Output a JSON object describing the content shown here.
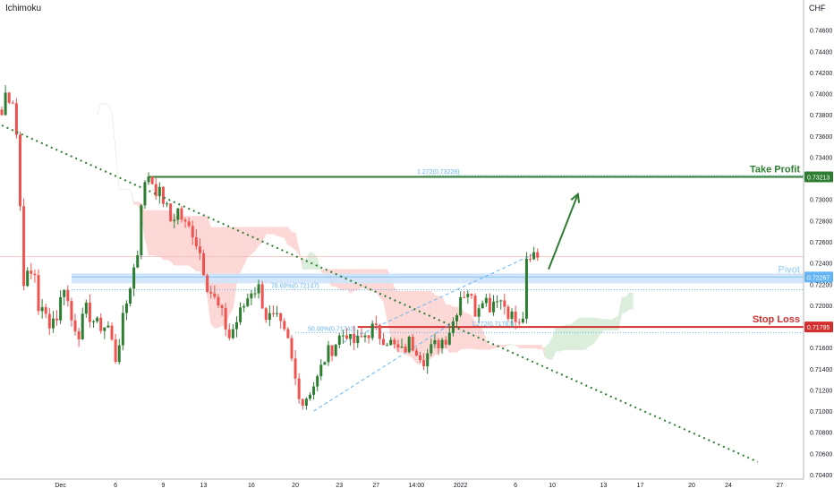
{
  "indicator": "Ichimoku",
  "currency": "CHF",
  "colors": {
    "up": "#26a69a",
    "upBody": "#2e7d32",
    "down": "#ef5350",
    "cloudRed": "#fcd3d1",
    "cloudGreen": "#d6ecd7",
    "takeProfit": "#2e7d32",
    "pivot": "#90caf9",
    "stopLoss": "#d32f2f",
    "fib": "#64b5f6",
    "trend": "#2e7d32",
    "axis": "#b2b5be",
    "text": "#131722"
  },
  "chart_data": {
    "type": "candlestick",
    "symbol_indicator": "Ichimoku",
    "ylim": [
      0.704,
      0.748
    ],
    "y_ticks": [
      "0.74600",
      "0.74400",
      "0.74200",
      "0.74000",
      "0.73800",
      "0.73600",
      "0.73400",
      "0.73200",
      "0.73000",
      "0.72800",
      "0.72600",
      "0.72400",
      "0.72200",
      "0.72000",
      "0.71800",
      "0.71600",
      "0.71400",
      "0.71200",
      "0.71000",
      "0.70800",
      "0.70600",
      "0.70400"
    ],
    "x_ticks": [
      {
        "label": "Dec",
        "bar": 16
      },
      {
        "label": "6",
        "bar": 31
      },
      {
        "label": "9",
        "bar": 44
      },
      {
        "label": "13",
        "bar": 55
      },
      {
        "label": "16",
        "bar": 68
      },
      {
        "label": "20",
        "bar": 80
      },
      {
        "label": "23",
        "bar": 92
      },
      {
        "label": "27",
        "bar": 102
      },
      {
        "label": "14:00",
        "bar": 113
      },
      {
        "label": "2022",
        "bar": 125
      },
      {
        "label": "6",
        "bar": 140
      },
      {
        "label": "10",
        "bar": 150
      },
      {
        "label": "13",
        "bar": 164
      },
      {
        "label": "17",
        "bar": 174
      },
      {
        "label": "20",
        "bar": 188
      },
      {
        "label": "24",
        "bar": 198
      },
      {
        "label": "27",
        "bar": 212
      }
    ],
    "total_bars": 218,
    "last_bar": 146,
    "close_path": [
      [
        0,
        0.738
      ],
      [
        1,
        0.74
      ],
      [
        3,
        0.7395
      ],
      [
        4,
        0.7362
      ],
      [
        6,
        0.7225
      ],
      [
        9,
        0.723
      ],
      [
        10,
        0.7198
      ],
      [
        13,
        0.7185
      ],
      [
        15,
        0.719
      ],
      [
        17,
        0.722
      ],
      [
        19,
        0.7186
      ],
      [
        21,
        0.7175
      ],
      [
        23,
        0.7195
      ],
      [
        26,
        0.7181
      ],
      [
        29,
        0.718
      ],
      [
        31,
        0.715
      ],
      [
        33,
        0.7185
      ],
      [
        35,
        0.722
      ],
      [
        37,
        0.725
      ],
      [
        38,
        0.73
      ],
      [
        40,
        0.7324
      ],
      [
        42,
        0.731
      ],
      [
        44,
        0.73
      ],
      [
        46,
        0.728
      ],
      [
        48,
        0.729
      ],
      [
        50,
        0.7275
      ],
      [
        52,
        0.727
      ],
      [
        54,
        0.725
      ],
      [
        56,
        0.722
      ],
      [
        58,
        0.7205
      ],
      [
        60,
        0.719
      ],
      [
        62,
        0.717
      ],
      [
        64,
        0.7185
      ],
      [
        66,
        0.72
      ],
      [
        68,
        0.7215
      ],
      [
        70,
        0.7216
      ],
      [
        72,
        0.719
      ],
      [
        75,
        0.7185
      ],
      [
        78,
        0.7165
      ],
      [
        80,
        0.713
      ],
      [
        82,
        0.7108
      ],
      [
        84,
        0.712
      ],
      [
        86,
        0.713
      ],
      [
        88,
        0.715
      ],
      [
        90,
        0.716
      ],
      [
        92,
        0.717
      ],
      [
        94,
        0.7175
      ],
      [
        95,
        0.7165
      ],
      [
        97,
        0.7165
      ],
      [
        99,
        0.7172
      ],
      [
        101,
        0.7178
      ],
      [
        103,
        0.7172
      ],
      [
        105,
        0.7168
      ],
      [
        107,
        0.716
      ],
      [
        109,
        0.7155
      ],
      [
        111,
        0.7165
      ],
      [
        113,
        0.716
      ],
      [
        115,
        0.715
      ],
      [
        117,
        0.7158
      ],
      [
        119,
        0.7165
      ],
      [
        121,
        0.717
      ],
      [
        123,
        0.7185
      ],
      [
        125,
        0.721
      ],
      [
        127,
        0.7214
      ],
      [
        129,
        0.7195
      ],
      [
        131,
        0.721
      ],
      [
        133,
        0.72
      ],
      [
        135,
        0.721
      ],
      [
        137,
        0.72
      ],
      [
        139,
        0.719
      ],
      [
        141,
        0.718
      ],
      [
        142,
        0.719
      ],
      [
        143,
        0.7237
      ],
      [
        144,
        0.724
      ],
      [
        145,
        0.7248
      ],
      [
        146,
        0.7245
      ]
    ],
    "levels": {
      "take_profit": {
        "label": "Take Profit",
        "value": 0.73213,
        "price_tag": "0.73213",
        "from_bar": 40,
        "fib_text": "1.272(0.73228)"
      },
      "pivot": {
        "label": "Pivot",
        "value": 0.72267,
        "price_tag": "0.72267",
        "from_bar": 19,
        "fib_text": "78.60%(0.72147)"
      },
      "stop_loss": {
        "label": "Stop Loss",
        "value": 0.71795,
        "price_tag": "0.71795",
        "from_bar": 97,
        "fib_text_left": "50.00%(0.71742)",
        "fib_text_right": "1.272(0.71787)"
      }
    },
    "trendline": {
      "from": [
        0,
        0.737
      ],
      "to": [
        206,
        0.7052
      ]
    },
    "channel_lower": {
      "from": [
        85,
        0.71
      ],
      "to": [
        124,
        0.7186
      ]
    },
    "channel_upper": {
      "from": [
        93,
        0.7165
      ],
      "to": [
        146,
        0.725
      ]
    },
    "arrow": {
      "from": [
        149,
        0.7234
      ],
      "to": [
        157,
        0.7305
      ]
    }
  }
}
